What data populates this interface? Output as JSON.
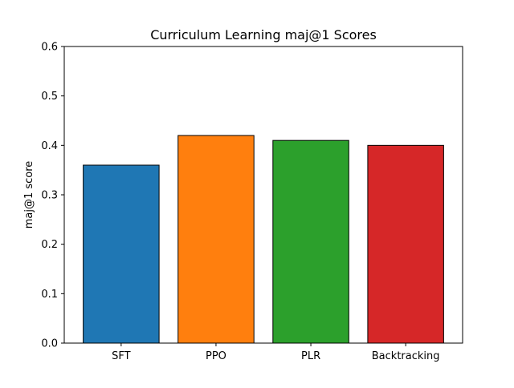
{
  "chart_data": {
    "type": "bar",
    "title": "Curriculum Learning maj@1 Scores",
    "xlabel": "",
    "ylabel": "maj@1 score",
    "categories": [
      "SFT",
      "PPO",
      "PLR",
      "Backtracking"
    ],
    "values": [
      0.36,
      0.42,
      0.41,
      0.4
    ],
    "colors": [
      "#1f77b4",
      "#ff7f0e",
      "#2ca02c",
      "#d62728"
    ],
    "edge_color": "#000000",
    "ylim": [
      0,
      0.6
    ],
    "yticks": [
      "0.0",
      "0.1",
      "0.2",
      "0.3",
      "0.4",
      "0.5",
      "0.6"
    ],
    "grid": false,
    "legend": "none"
  }
}
